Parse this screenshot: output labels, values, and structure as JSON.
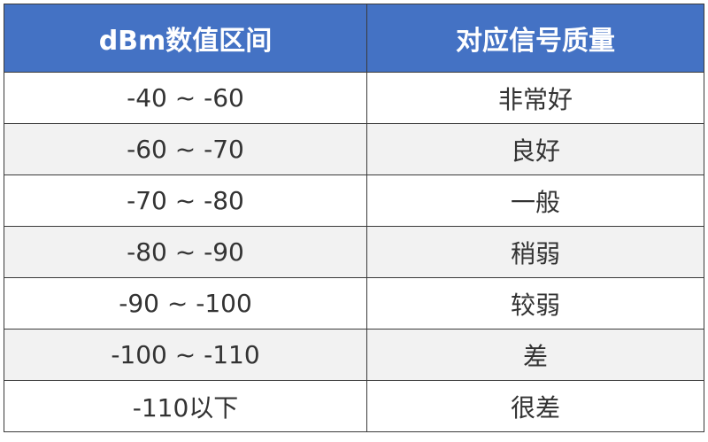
{
  "table": {
    "header": [
      "dBm数值区间",
      "对应信号质量"
    ],
    "rows": [
      [
        "-40 ~ -60",
        "非常好"
      ],
      [
        "-60 ~ -70",
        "良好"
      ],
      [
        "-70 ~ -80",
        "一般"
      ],
      [
        "-80 ~ -90",
        "稍弱"
      ],
      [
        "-90 ~ -100",
        "较弱"
      ],
      [
        "-100 ~ -110",
        "差"
      ],
      [
        "-110以下",
        "很差"
      ]
    ]
  }
}
